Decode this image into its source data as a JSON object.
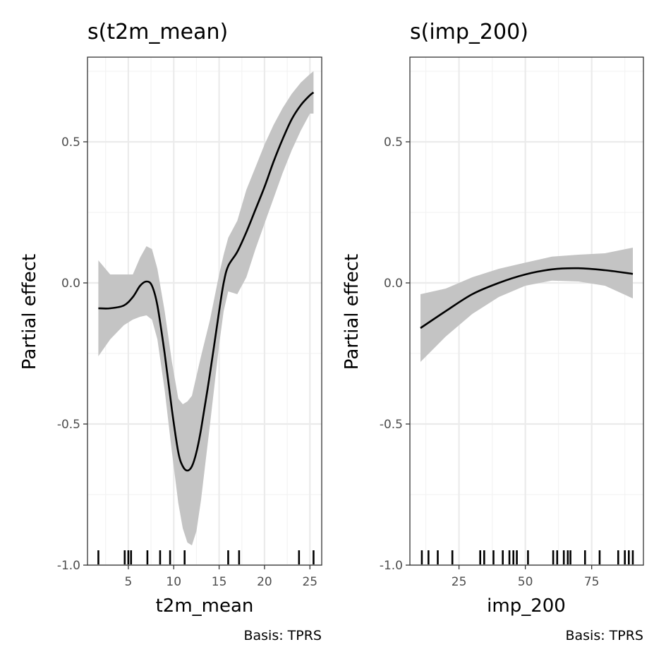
{
  "colors": {
    "background": "#ffffff",
    "panel_border": "#333333",
    "grid_major": "#ebebeb",
    "grid_minor": "#f3f3f3",
    "line": "#000000",
    "ribbon": "#c4c4c4",
    "tick_label": "#4d4d4d"
  },
  "chart_data": [
    {
      "type": "line",
      "title": "s(t2m_mean)",
      "xlabel": "t2m_mean",
      "ylabel": "Partial effect",
      "caption": "Basis: TPRS",
      "xlim": [
        0.5,
        26.3
      ],
      "ylim": [
        -1.0,
        0.8
      ],
      "x_ticks": [
        5,
        10,
        15,
        20,
        25
      ],
      "y_ticks": [
        -1.0,
        -0.5,
        0.0,
        0.5
      ],
      "y_tick_labels": [
        "-1.0",
        "-0.5",
        "0.0",
        "0.5"
      ],
      "grid": true,
      "series": [
        {
          "x": [
            1.7,
            3.0,
            4.5,
            5.5,
            6.3,
            7.0,
            7.6,
            8.2,
            9.0,
            9.8,
            10.5,
            11.0,
            11.5,
            12.0,
            12.5,
            13.0,
            14.0,
            15.0,
            15.5,
            16.0,
            17.0,
            18.0,
            19.0,
            20.0,
            21.0,
            22.0,
            23.0,
            24.0,
            25.0,
            25.4
          ],
          "y": [
            -0.09,
            -0.09,
            -0.08,
            -0.05,
            -0.01,
            0.005,
            -0.01,
            -0.08,
            -0.25,
            -0.45,
            -0.6,
            -0.65,
            -0.665,
            -0.65,
            -0.6,
            -0.52,
            -0.32,
            -0.1,
            0.0,
            0.06,
            0.11,
            0.18,
            0.26,
            0.34,
            0.43,
            0.51,
            0.58,
            0.63,
            0.665,
            0.675
          ],
          "lower": [
            -0.26,
            -0.2,
            -0.15,
            -0.13,
            -0.12,
            -0.115,
            -0.13,
            -0.2,
            -0.38,
            -0.6,
            -0.78,
            -0.87,
            -0.92,
            -0.93,
            -0.88,
            -0.77,
            -0.5,
            -0.22,
            -0.1,
            -0.03,
            -0.04,
            0.02,
            0.12,
            0.21,
            0.3,
            0.39,
            0.47,
            0.54,
            0.6,
            0.6
          ],
          "upper": [
            0.08,
            0.03,
            0.03,
            0.03,
            0.09,
            0.13,
            0.12,
            0.05,
            -0.1,
            -0.28,
            -0.41,
            -0.43,
            -0.42,
            -0.4,
            -0.33,
            -0.26,
            -0.13,
            0.03,
            0.1,
            0.16,
            0.22,
            0.33,
            0.41,
            0.49,
            0.56,
            0.62,
            0.67,
            0.71,
            0.74,
            0.75
          ]
        }
      ],
      "rug": [
        1.7,
        4.6,
        5.0,
        5.3,
        7.1,
        8.5,
        9.6,
        11.2,
        16.0,
        17.2,
        23.8,
        25.4
      ]
    },
    {
      "type": "line",
      "title": "s(imp_200)",
      "xlabel": "imp_200",
      "ylabel": "Partial effect",
      "caption": "Basis: TPRS",
      "xlim": [
        6.5,
        94.5
      ],
      "ylim": [
        -1.0,
        0.8
      ],
      "x_ticks": [
        25,
        50,
        75
      ],
      "y_ticks": [
        -1.0,
        -0.5,
        0.0,
        0.5
      ],
      "y_tick_labels": [
        "-1.0",
        "-0.5",
        "0.0",
        "0.5"
      ],
      "grid": true,
      "series": [
        {
          "x": [
            10.5,
            20.0,
            30.0,
            40.0,
            50.0,
            60.0,
            70.0,
            80.0,
            90.5
          ],
          "y": [
            -0.16,
            -0.1,
            -0.04,
            0.0,
            0.03,
            0.048,
            0.052,
            0.045,
            0.032
          ],
          "lower": [
            -0.28,
            -0.19,
            -0.11,
            -0.05,
            -0.01,
            0.008,
            0.005,
            -0.01,
            -0.055
          ],
          "upper": [
            -0.04,
            -0.02,
            0.02,
            0.05,
            0.072,
            0.093,
            0.1,
            0.105,
            0.125
          ]
        }
      ],
      "rug": [
        11.0,
        13.5,
        17.0,
        22.5,
        33.0,
        34.5,
        38.0,
        41.5,
        44.0,
        45.5,
        46.8,
        51.0,
        60.5,
        62.0,
        64.5,
        66.0,
        67.0,
        72.5,
        78.0,
        85.0,
        87.5,
        89.0,
        90.5
      ]
    }
  ]
}
